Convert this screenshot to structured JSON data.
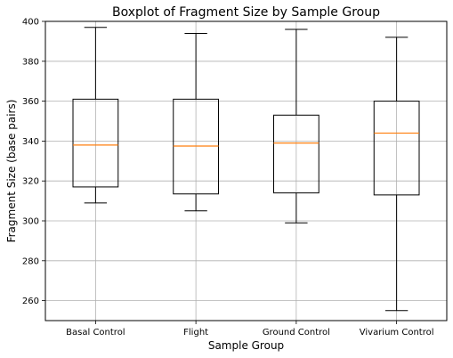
{
  "chart_data": {
    "type": "boxplot",
    "title": "Boxplot of Fragment Size by Sample Group",
    "xlabel": "Sample Group",
    "ylabel": "Fragment Size (base pairs)",
    "ylim": [
      250,
      400
    ],
    "yticks": [
      260,
      280,
      300,
      320,
      340,
      360,
      380,
      400
    ],
    "grid": true,
    "categories": [
      "Basal Control",
      "Flight",
      "Ground Control",
      "Vivarium Control"
    ],
    "boxes": [
      {
        "category": "Basal Control",
        "whisker_low": 309,
        "q1": 317,
        "median": 338,
        "q3": 361,
        "whisker_high": 397
      },
      {
        "category": "Flight",
        "whisker_low": 305,
        "q1": 313.5,
        "median": 337.5,
        "q3": 361,
        "whisker_high": 394
      },
      {
        "category": "Ground Control",
        "whisker_low": 299,
        "q1": 314,
        "median": 339,
        "q3": 353,
        "whisker_high": 396
      },
      {
        "category": "Vivarium Control",
        "whisker_low": 255,
        "q1": 313,
        "median": 344,
        "q3": 360,
        "whisker_high": 392
      }
    ],
    "colors": {
      "box": "#000000",
      "median": "#ff7f0e",
      "grid": "#b0b0b0"
    }
  }
}
